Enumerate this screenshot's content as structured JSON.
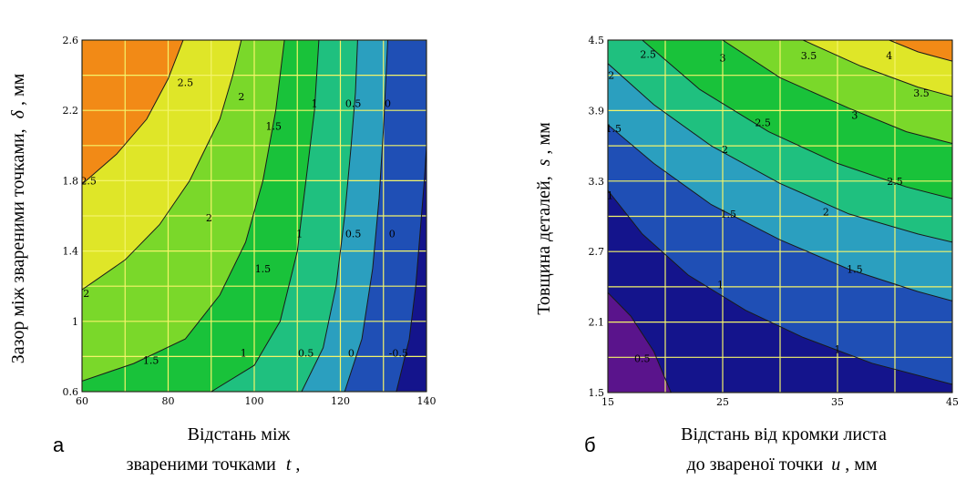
{
  "chart_data": [
    {
      "type": "heatmap",
      "subtype": "filled-contour",
      "panel_label": "а",
      "xlabel_line1": "Відстань між",
      "xlabel_line2_prefix": "звареними точками",
      "xlabel_var": "t",
      "xlabel_line2_suffix": ",",
      "ylabel_text": "Зазор між звареними точками,",
      "ylabel_var": "δ",
      "ylabel_unit": ", мм",
      "xlim": [
        60,
        140
      ],
      "ylim": [
        0.6,
        2.6
      ],
      "xticks": [
        "60",
        "80",
        "100",
        "120",
        "140"
      ],
      "yticks": [
        "0.6",
        "1",
        "1.4",
        "1.8",
        "2.2",
        "2.6"
      ],
      "xgrid": [
        60,
        70,
        80,
        90,
        100,
        110,
        120,
        130,
        140
      ],
      "ygrid": [
        0.6,
        0.8,
        1.0,
        1.2,
        1.4,
        1.6,
        1.8,
        2.0,
        2.2,
        2.4,
        2.6
      ],
      "grid": true,
      "contour_levels": [
        -0.5,
        0,
        0.5,
        1,
        1.5,
        2,
        2.5
      ],
      "contour_lines": [
        {
          "level": 2.5,
          "points": [
            [
              60,
              1.78
            ],
            [
              68,
              1.95
            ],
            [
              75,
              2.15
            ],
            [
              80,
              2.38
            ],
            [
              83.5,
              2.6
            ]
          ]
        },
        {
          "level": 2,
          "points": [
            [
              60,
              1.18
            ],
            [
              70,
              1.35
            ],
            [
              78,
              1.55
            ],
            [
              85,
              1.8
            ],
            [
              92,
              2.15
            ],
            [
              95,
              2.4
            ],
            [
              97,
              2.6
            ]
          ]
        },
        {
          "level": 1.5,
          "points": [
            [
              60,
              0.66
            ],
            [
              72,
              0.76
            ],
            [
              84,
              0.9
            ],
            [
              92,
              1.15
            ],
            [
              98,
              1.45
            ],
            [
              102,
              1.8
            ],
            [
              105,
              2.2
            ],
            [
              107,
              2.6
            ]
          ]
        },
        {
          "level": 1,
          "points": [
            [
              90,
              0.6
            ],
            [
              100,
              0.75
            ],
            [
              106,
              1.0
            ],
            [
              110,
              1.4
            ],
            [
              112,
              1.8
            ],
            [
              114,
              2.2
            ],
            [
              115,
              2.6
            ]
          ]
        },
        {
          "level": 0.5,
          "points": [
            [
              111,
              0.6
            ],
            [
              116,
              0.85
            ],
            [
              119,
              1.2
            ],
            [
              121,
              1.6
            ],
            [
              122.5,
              2.0
            ],
            [
              123.5,
              2.3
            ],
            [
              124,
              2.6
            ]
          ]
        },
        {
          "level": 0,
          "points": [
            [
              121,
              0.6
            ],
            [
              125,
              0.9
            ],
            [
              127.5,
              1.3
            ],
            [
              129,
              1.7
            ],
            [
              130,
              2.1
            ],
            [
              131,
              2.6
            ]
          ]
        },
        {
          "level": -0.5,
          "points": [
            [
              133,
              0.6
            ],
            [
              136,
              0.9
            ],
            [
              137.5,
              1.2
            ],
            [
              138.5,
              1.5
            ],
            [
              139.5,
              1.8
            ],
            [
              140,
              2.0
            ]
          ]
        }
      ],
      "contour_labels": [
        {
          "text": "2.5",
          "x": 84,
          "y": 2.36
        },
        {
          "text": "2.5",
          "x": 61.5,
          "y": 1.8
        },
        {
          "text": "2",
          "x": 97,
          "y": 2.28
        },
        {
          "text": "2",
          "x": 89.5,
          "y": 1.59
        },
        {
          "text": "2",
          "x": 61,
          "y": 1.16
        },
        {
          "text": "1.5",
          "x": 104.5,
          "y": 2.11
        },
        {
          "text": "1.5",
          "x": 102,
          "y": 1.3
        },
        {
          "text": "1.5",
          "x": 76,
          "y": 0.78
        },
        {
          "text": "1",
          "x": 114,
          "y": 2.24
        },
        {
          "text": "1",
          "x": 110.5,
          "y": 1.5
        },
        {
          "text": "1",
          "x": 97.5,
          "y": 0.82
        },
        {
          "text": "0.5",
          "x": 123,
          "y": 2.24
        },
        {
          "text": "0.5",
          "x": 123,
          "y": 1.5
        },
        {
          "text": "0.5",
          "x": 112,
          "y": 0.82
        },
        {
          "text": "0",
          "x": 131,
          "y": 2.24
        },
        {
          "text": "0",
          "x": 132,
          "y": 1.5
        },
        {
          "text": "0",
          "x": 122.5,
          "y": 0.82
        },
        {
          "text": "-0.5",
          "x": 133.5,
          "y": 0.82
        }
      ],
      "fill_colors": [
        "#14148c",
        "#1f4fb5",
        "#2b9fbf",
        "#1fc07f",
        "#19c23a",
        "#7ad82a",
        "#dfe628",
        "#f28a16"
      ]
    },
    {
      "type": "heatmap",
      "subtype": "filled-contour",
      "panel_label": "б",
      "xlabel_line1": "Відстань від кромки листа",
      "xlabel_line2_prefix": "до звареної точки",
      "xlabel_var": "u",
      "xlabel_line2_suffix": ", мм",
      "ylabel_text": "Товщина деталей,",
      "ylabel_var": "s",
      "ylabel_unit": ", мм",
      "xlim": [
        15,
        45
      ],
      "ylim": [
        1.5,
        4.5
      ],
      "xticks": [
        "15",
        "25",
        "35",
        "45"
      ],
      "yticks": [
        "1.5",
        "2.1",
        "2.7",
        "3.3",
        "3.9",
        "4.5"
      ],
      "xgrid": [
        15,
        20,
        25,
        30,
        35,
        40,
        45
      ],
      "ygrid": [
        1.5,
        1.8,
        2.1,
        2.4,
        2.7,
        3.0,
        3.3,
        3.6,
        3.9,
        4.2,
        4.5
      ],
      "grid": true,
      "contour_levels": [
        0.5,
        1,
        1.5,
        2,
        2.5,
        3,
        3.5,
        4
      ],
      "contour_lines": [
        {
          "level": 0.5,
          "points": [
            [
              15,
              2.35
            ],
            [
              17,
              2.15
            ],
            [
              19,
              1.85
            ],
            [
              20.5,
              1.5
            ]
          ]
        },
        {
          "level": 1,
          "points": [
            [
              15,
              3.22
            ],
            [
              18,
              2.85
            ],
            [
              22,
              2.5
            ],
            [
              27,
              2.2
            ],
            [
              32,
              1.97
            ],
            [
              38,
              1.75
            ],
            [
              45,
              1.57
            ]
          ]
        },
        {
          "level": 1.5,
          "points": [
            [
              15,
              3.78
            ],
            [
              19,
              3.45
            ],
            [
              24,
              3.1
            ],
            [
              30,
              2.8
            ],
            [
              36,
              2.55
            ],
            [
              42,
              2.36
            ],
            [
              45,
              2.28
            ]
          ]
        },
        {
          "level": 2,
          "points": [
            [
              15,
              4.3
            ],
            [
              19,
              3.95
            ],
            [
              24,
              3.6
            ],
            [
              30,
              3.28
            ],
            [
              36,
              3.02
            ],
            [
              42,
              2.85
            ],
            [
              45,
              2.78
            ]
          ]
        },
        {
          "level": 2.5,
          "points": [
            [
              18,
              4.5
            ],
            [
              23,
              4.08
            ],
            [
              29,
              3.72
            ],
            [
              35,
              3.45
            ],
            [
              41,
              3.25
            ],
            [
              45,
              3.15
            ]
          ]
        },
        {
          "level": 3,
          "points": [
            [
              25,
              4.5
            ],
            [
              30,
              4.18
            ],
            [
              36,
              3.92
            ],
            [
              41,
              3.72
            ],
            [
              45,
              3.62
            ]
          ]
        },
        {
          "level": 3.5,
          "points": [
            [
              32,
              4.5
            ],
            [
              37,
              4.28
            ],
            [
              42,
              4.1
            ],
            [
              45,
              4.02
            ]
          ]
        },
        {
          "level": 4,
          "points": [
            [
              39.5,
              4.5
            ],
            [
              42,
              4.4
            ],
            [
              45,
              4.32
            ]
          ]
        }
      ],
      "contour_labels": [
        {
          "text": "2.5",
          "x": 18.5,
          "y": 4.38
        },
        {
          "text": "3",
          "x": 25,
          "y": 4.35
        },
        {
          "text": "3.5",
          "x": 32.5,
          "y": 4.37
        },
        {
          "text": "4",
          "x": 39.5,
          "y": 4.37
        },
        {
          "text": "2",
          "x": 15.3,
          "y": 4.2
        },
        {
          "text": "3.5",
          "x": 42.3,
          "y": 4.05
        },
        {
          "text": "1.5",
          "x": 15.5,
          "y": 3.75
        },
        {
          "text": "2.5",
          "x": 28.5,
          "y": 3.8
        },
        {
          "text": "3",
          "x": 36.5,
          "y": 3.86
        },
        {
          "text": "2",
          "x": 25.2,
          "y": 3.57
        },
        {
          "text": "2.5",
          "x": 40,
          "y": 3.3
        },
        {
          "text": "1",
          "x": 15.2,
          "y": 3.18
        },
        {
          "text": "1.5",
          "x": 25.5,
          "y": 3.02
        },
        {
          "text": "2",
          "x": 34,
          "y": 3.04
        },
        {
          "text": "1.5",
          "x": 36.5,
          "y": 2.55
        },
        {
          "text": "1",
          "x": 24.8,
          "y": 2.42
        },
        {
          "text": "1",
          "x": 35,
          "y": 1.87
        },
        {
          "text": "0.5",
          "x": 18,
          "y": 1.79
        }
      ],
      "fill_colors": [
        "#5a148c",
        "#14148c",
        "#1f4fb5",
        "#2b9fbf",
        "#1fc07f",
        "#19c23a",
        "#7ad82a",
        "#dfe628",
        "#f28a16"
      ]
    }
  ]
}
